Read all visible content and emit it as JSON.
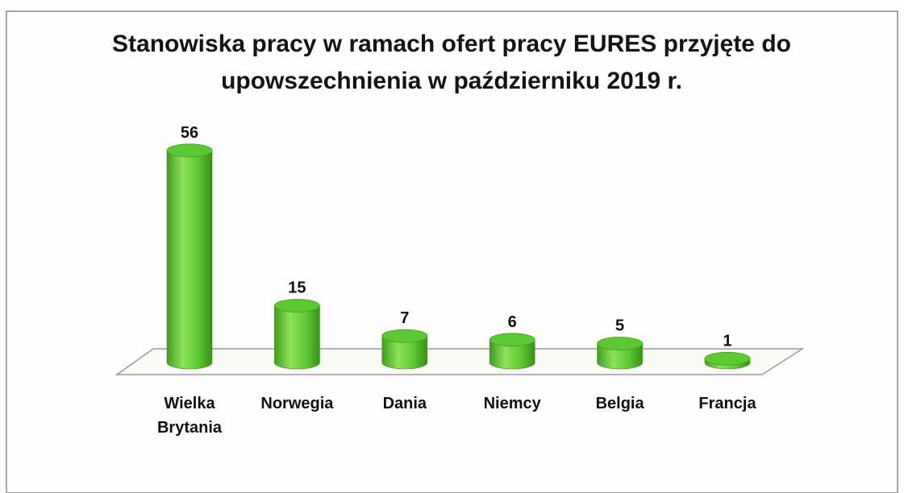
{
  "chart_data": {
    "type": "bar3d",
    "title": "Stanowiska pracy w ramach ofert pracy EURES przyjęte do upowszechnienia w październiku 2019 r.",
    "categories": [
      "Wielka Brytania",
      "Norwegia",
      "Dania",
      "Niemcy",
      "Belgia",
      "Francja"
    ],
    "values": [
      56,
      15,
      7,
      6,
      5,
      1
    ],
    "color": "#5cc832"
  }
}
